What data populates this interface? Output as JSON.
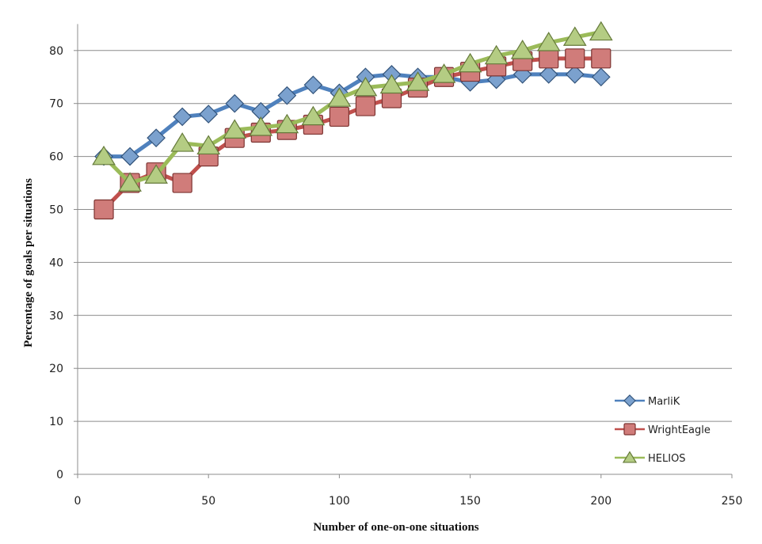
{
  "chart_data": {
    "type": "line",
    "title": "",
    "xlabel": "Number of one-on-one situations",
    "ylabel": "Percentage of goals per situations",
    "xlim": [
      0,
      250
    ],
    "ylim": [
      0,
      85
    ],
    "xticks": [
      0,
      50,
      100,
      150,
      200,
      250
    ],
    "yticks": [
      0,
      10,
      20,
      30,
      40,
      50,
      60,
      70,
      80
    ],
    "grid": {
      "horizontal": true,
      "vertical": false
    },
    "legend_position": "bottom-right",
    "x": [
      10,
      20,
      30,
      40,
      50,
      60,
      70,
      80,
      90,
      100,
      110,
      120,
      130,
      140,
      150,
      160,
      170,
      180,
      190,
      200
    ],
    "series": [
      {
        "name": "MarliK",
        "color": "#4f81bd",
        "marker": "diamond",
        "values": [
          60,
          60,
          63.5,
          67.5,
          68,
          70,
          68.5,
          71.5,
          73.5,
          72,
          75,
          75.5,
          75,
          75,
          74,
          74.5,
          75.5,
          75.5,
          75.5,
          75
        ]
      },
      {
        "name": "WrightEagle",
        "color": "#c0504d",
        "marker": "square",
        "values": [
          50,
          55,
          57,
          55,
          60,
          63.5,
          64.5,
          65,
          66,
          67.5,
          69.5,
          71,
          73,
          75,
          76,
          77,
          78,
          78.5,
          78.5,
          78.5
        ]
      },
      {
        "name": "HELIOS",
        "color": "#9bbb59",
        "marker": "triangle",
        "values": [
          60,
          55,
          56.5,
          62.5,
          62,
          65,
          65.5,
          66,
          67.5,
          71,
          73,
          73.5,
          74,
          75.5,
          77.5,
          79,
          80,
          81.5,
          82.5,
          83.5
        ]
      }
    ]
  }
}
